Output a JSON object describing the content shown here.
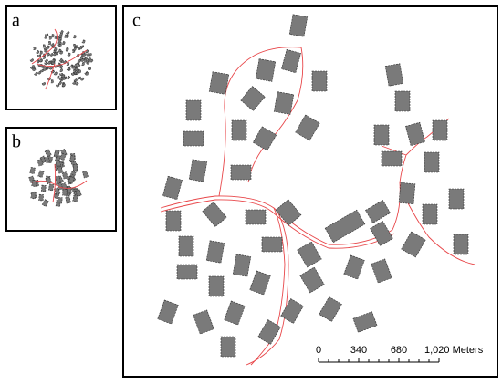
{
  "panels": [
    {
      "label": "a"
    },
    {
      "label": "b"
    },
    {
      "label": "c"
    }
  ],
  "scale_bar": {
    "labels": [
      "0",
      "340",
      "680",
      "1,020 Meters"
    ]
  }
}
